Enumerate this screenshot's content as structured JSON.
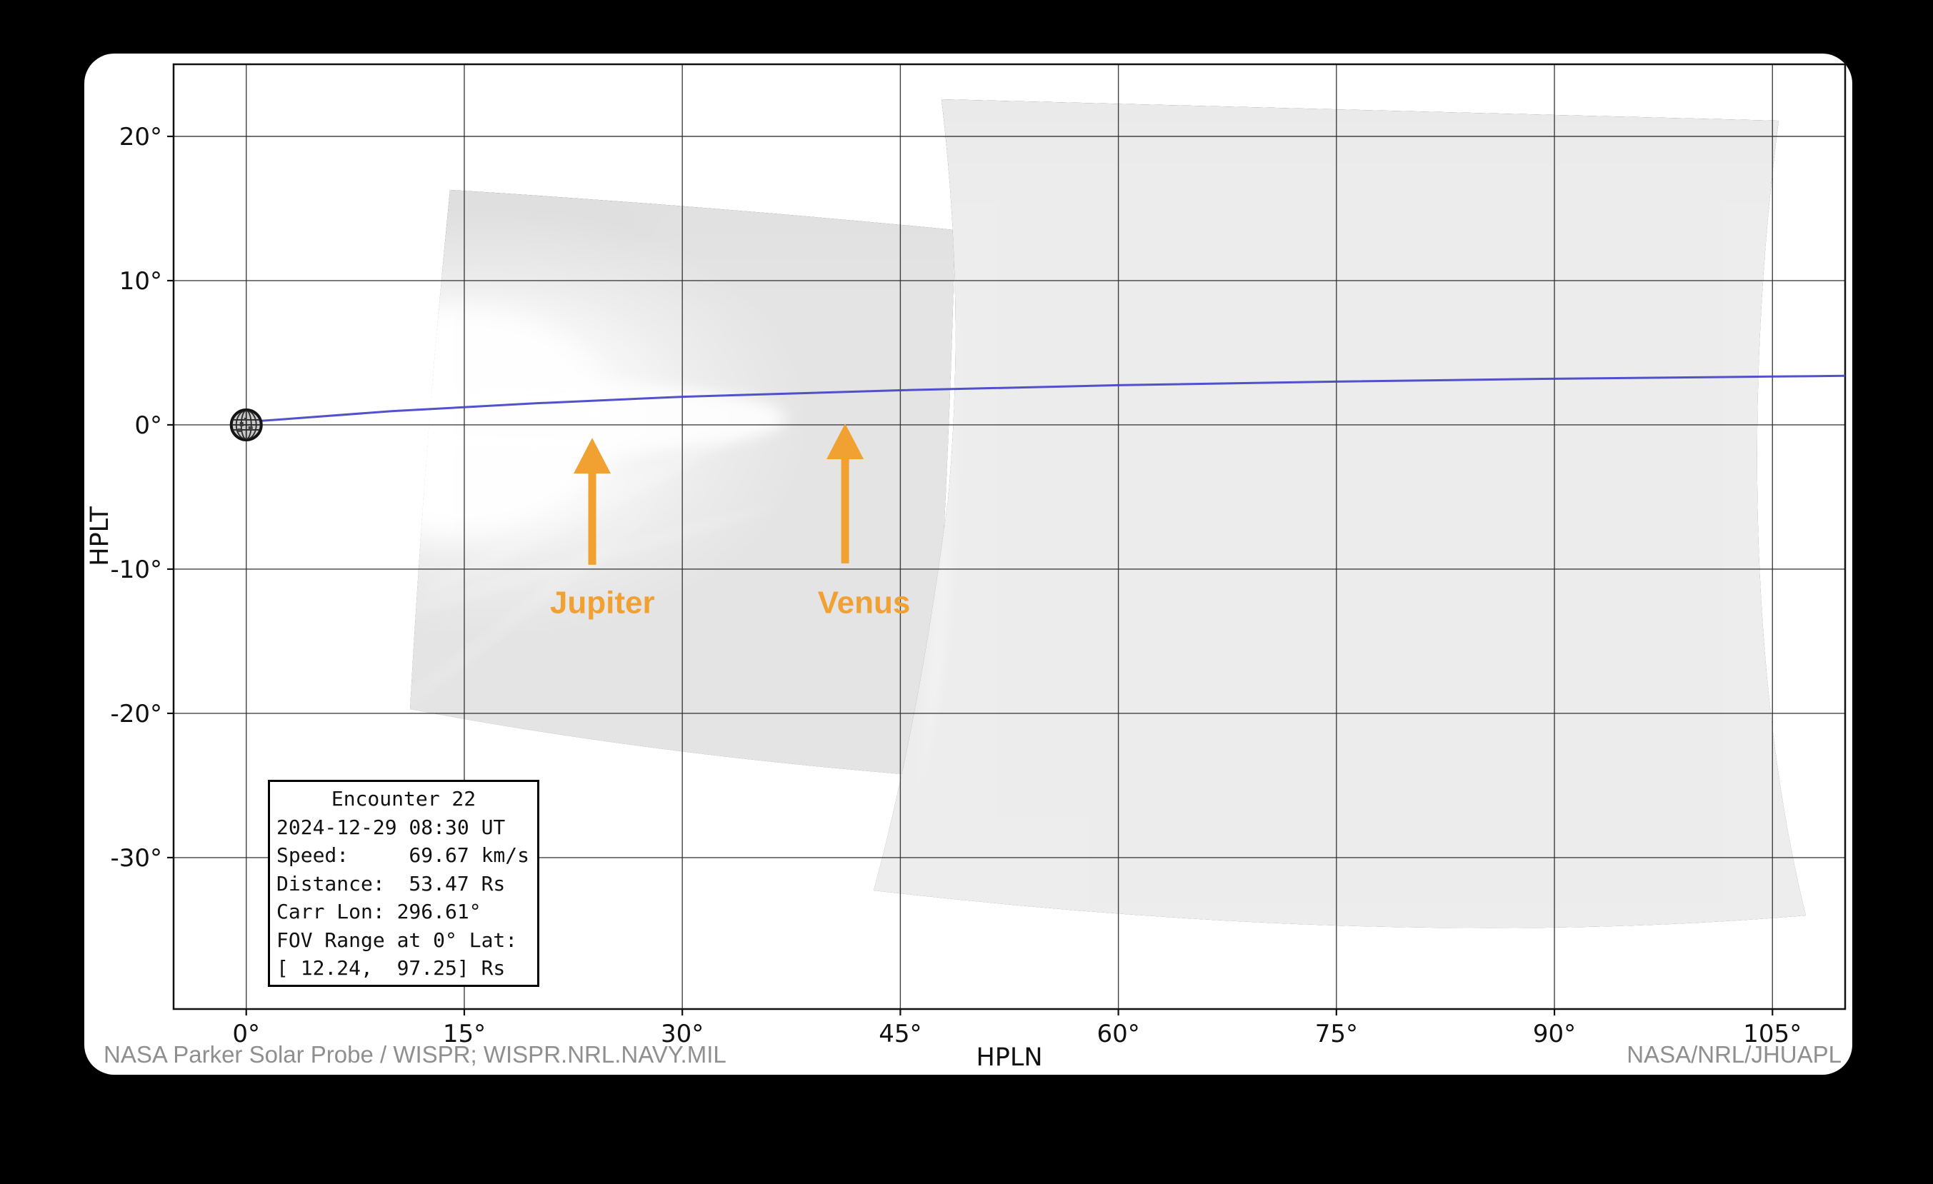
{
  "window": {
    "background": "#000000",
    "card_background": "#ffffff"
  },
  "chart_data": {
    "type": "heatmap",
    "title": "",
    "xlabel": "HPLN",
    "ylabel": "HPLT",
    "xlim": [
      -5,
      110
    ],
    "ylim": [
      -40.5,
      25
    ],
    "grid": true,
    "xticks": [
      {
        "value": 0,
        "label": "0°"
      },
      {
        "value": 15,
        "label": "15°"
      },
      {
        "value": 30,
        "label": "30°"
      },
      {
        "value": 45,
        "label": "45°"
      },
      {
        "value": 60,
        "label": "60°"
      },
      {
        "value": 75,
        "label": "75°"
      },
      {
        "value": 90,
        "label": "90°"
      },
      {
        "value": 105,
        "label": "105°"
      }
    ],
    "yticks": [
      {
        "value": 20,
        "label": "20°"
      },
      {
        "value": 10,
        "label": "10°"
      },
      {
        "value": 0,
        "label": "0°"
      },
      {
        "value": -10,
        "label": "-10°"
      },
      {
        "value": -20,
        "label": "-20°"
      },
      {
        "value": -30,
        "label": "-30°"
      }
    ],
    "sun_marker": {
      "x": 0,
      "y": 0
    },
    "ecliptic_line": {
      "color": "#4343c8",
      "points_deg": [
        [
          1.05,
          0.28
        ],
        [
          10,
          0.95
        ],
        [
          20,
          1.5
        ],
        [
          30,
          1.95
        ],
        [
          45,
          2.4
        ],
        [
          60,
          2.75
        ],
        [
          75,
          3.0
        ],
        [
          90,
          3.2
        ],
        [
          105,
          3.35
        ],
        [
          110,
          3.4
        ]
      ]
    },
    "annotations": [
      {
        "label": "Jupiter",
        "arrow_x": 23.8,
        "arrow_tip_y": -0.9,
        "arrow_tail_y": -9.7,
        "label_x": 24.5,
        "label_y": -12.3,
        "planet_x": 23.9,
        "planet_y": 0.9
      },
      {
        "label": "Venus",
        "arrow_x": 41.2,
        "arrow_tip_y": 0.1,
        "arrow_tail_y": -9.6,
        "label_x": 42.5,
        "label_y": -12.3,
        "planet_x": 41.4,
        "planet_y": 2.5
      }
    ],
    "accent_color": "#f0a132",
    "fov_patches": [
      {
        "name": "inner telescope image",
        "corners_deg": [
          [
            14.0,
            16.3
          ],
          [
            48.8,
            13.5
          ],
          [
            47.0,
            -24.4
          ],
          [
            11.3,
            -19.7
          ]
        ]
      },
      {
        "name": "outer telescope image",
        "corners_deg": [
          [
            47.8,
            22.6
          ],
          [
            105.4,
            21.1
          ],
          [
            107.3,
            -34.0
          ],
          [
            43.2,
            -32.3
          ]
        ]
      }
    ]
  },
  "info_box": {
    "lines": [
      "Encounter 22",
      "2024-12-29 08:30 UT",
      "Speed:     69.67 km/s",
      "Distance:  53.47 Rs",
      "Carr Lon: 296.61°",
      "FOV Range at 0° Lat:",
      "[ 12.24,  97.25] Rs"
    ]
  },
  "footer": {
    "left_credit": "NASA Parker Solar Probe / WISPR; WISPR.NRL.NAVY.MIL",
    "right_credit": "NASA/NRL/JHUAPL"
  }
}
